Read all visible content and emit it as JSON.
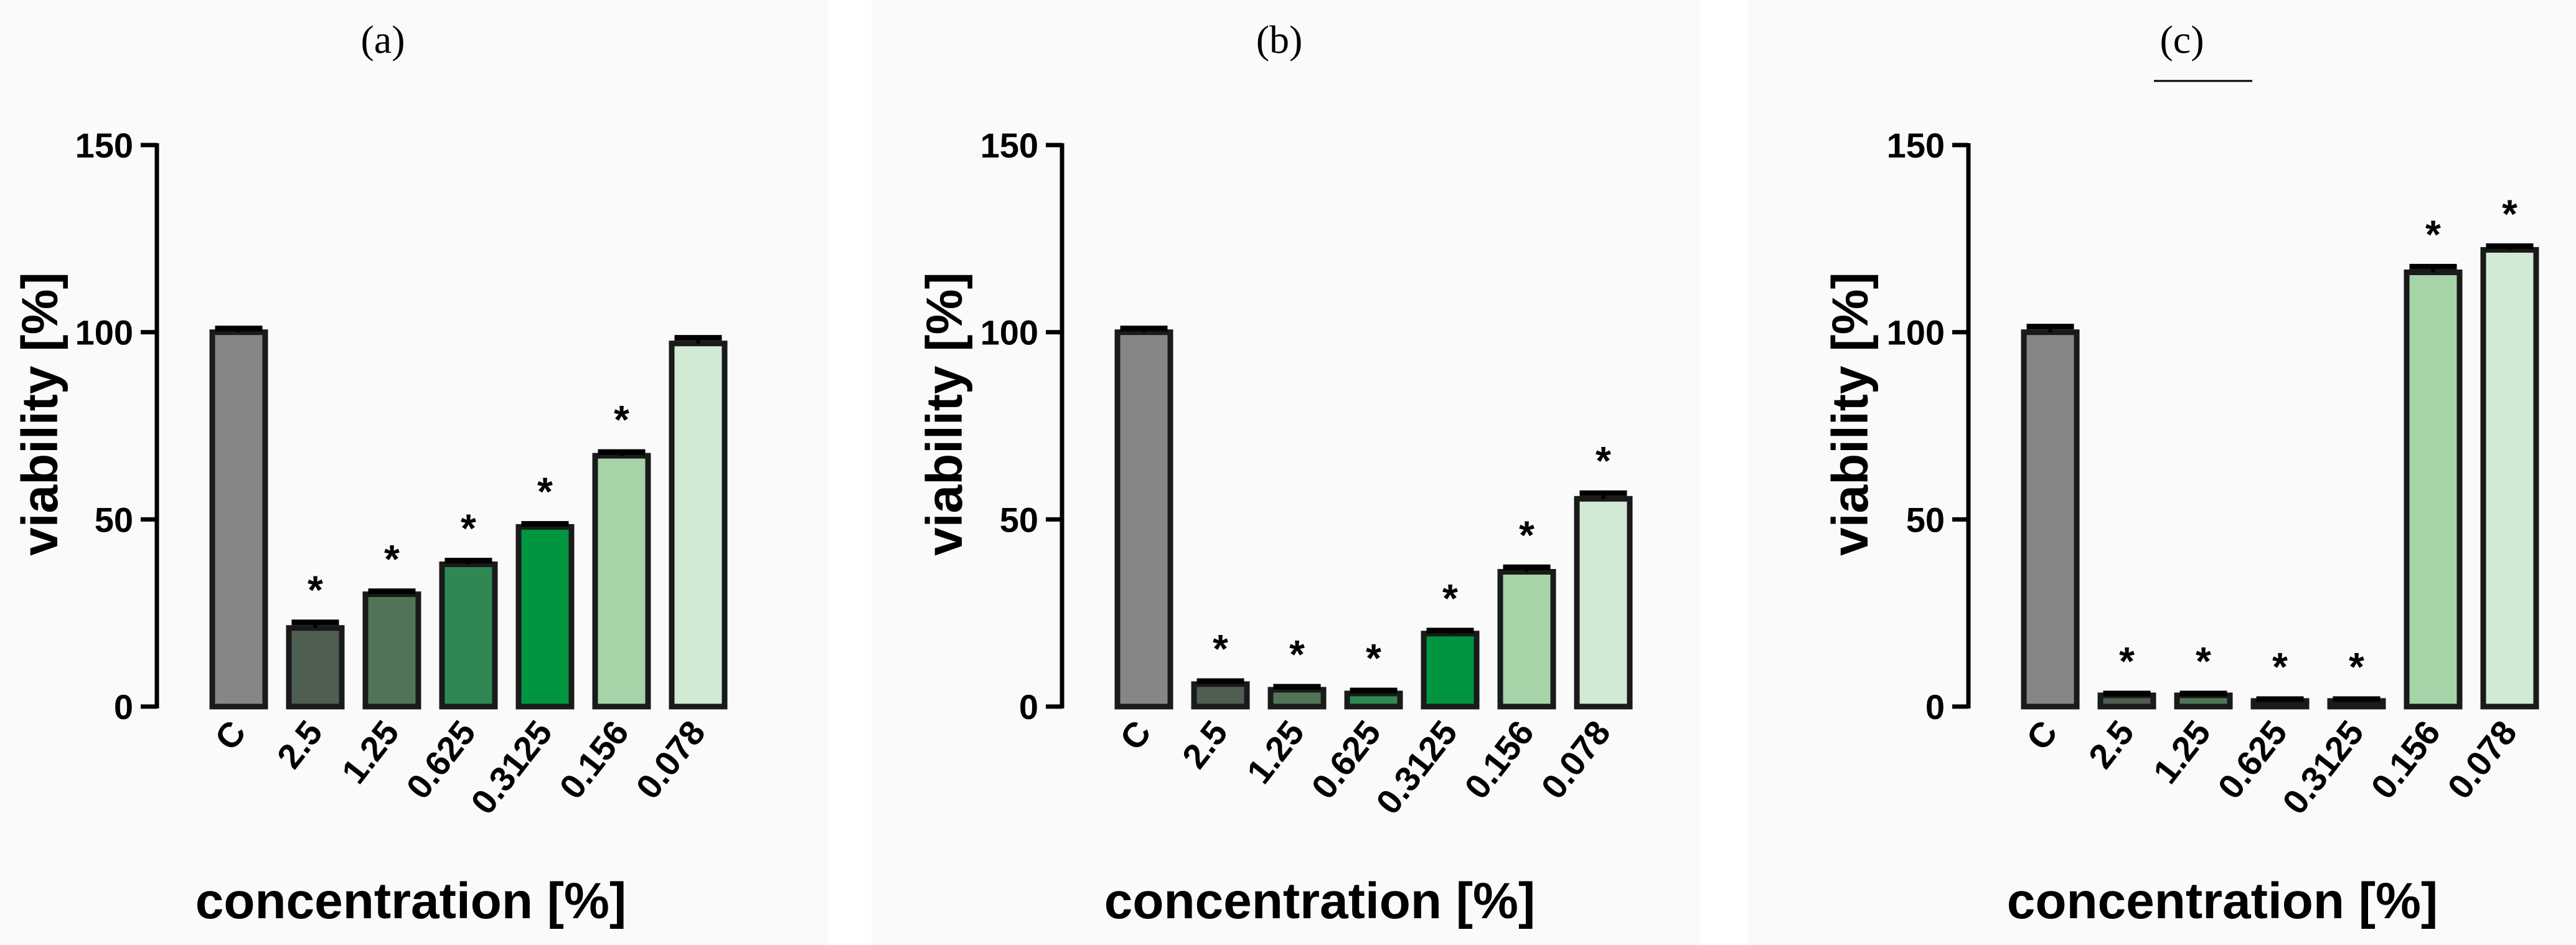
{
  "colors": {
    "control": "#858785",
    "c2_5": "#4e5e50",
    "c1_25": "#527557",
    "c0_625": "#2f8853",
    "c0_3125": "#00953f",
    "c0_156": "#a6d3a8",
    "c0_078": "#d2e9d3"
  },
  "chart_data": [
    {
      "panel_label": "(a)",
      "type": "bar",
      "xlabel": "concentration [%]",
      "ylabel": "viability [%]",
      "ylim": [
        0,
        150
      ],
      "yticks": [
        "0",
        "50",
        "100",
        "150"
      ],
      "categories": [
        "C",
        "2.5",
        "1.25",
        "0.625",
        "0.3125",
        "0.156",
        "0.078"
      ],
      "values": [
        100,
        21,
        30,
        38,
        48,
        67,
        97
      ],
      "errors": [
        1.0,
        1.5,
        0.8,
        1.0,
        0.8,
        1.0,
        1.5
      ],
      "significance": [
        "",
        "*",
        "*",
        "*",
        "*",
        "*",
        ""
      ]
    },
    {
      "panel_label": "(b)",
      "type": "bar",
      "xlabel": "concentration [%]",
      "ylabel": "viability [%]",
      "ylim": [
        0,
        150
      ],
      "yticks": [
        "0",
        "50",
        "100",
        "150"
      ],
      "categories": [
        "C",
        "2.5",
        "1.25",
        "0.625",
        "0.3125",
        "0.156",
        "0.078"
      ],
      "values": [
        100,
        6,
        4.5,
        3.5,
        19.5,
        36,
        55.5
      ],
      "errors": [
        1.0,
        0.8,
        0.8,
        0.8,
        0.8,
        1.2,
        1.5
      ],
      "significance": [
        "",
        "*",
        "*",
        "*",
        "*",
        "*",
        "*"
      ]
    },
    {
      "panel_label": "(c)",
      "type": "bar",
      "xlabel": "concentration [%]",
      "ylabel": "viability [%]",
      "ylim": [
        0,
        150
      ],
      "yticks": [
        "0",
        "50",
        "100",
        "150"
      ],
      "categories": [
        "C",
        "2.5",
        "1.25",
        "0.625",
        "0.3125",
        "0.156",
        "0.078"
      ],
      "values": [
        100,
        3,
        3,
        1.5,
        1.5,
        116,
        122
      ],
      "errors": [
        1.5,
        0.5,
        0.5,
        0.5,
        0.5,
        1.5,
        1.0
      ],
      "significance": [
        "",
        "*",
        "*",
        "*",
        "*",
        "*",
        "*"
      ]
    }
  ]
}
